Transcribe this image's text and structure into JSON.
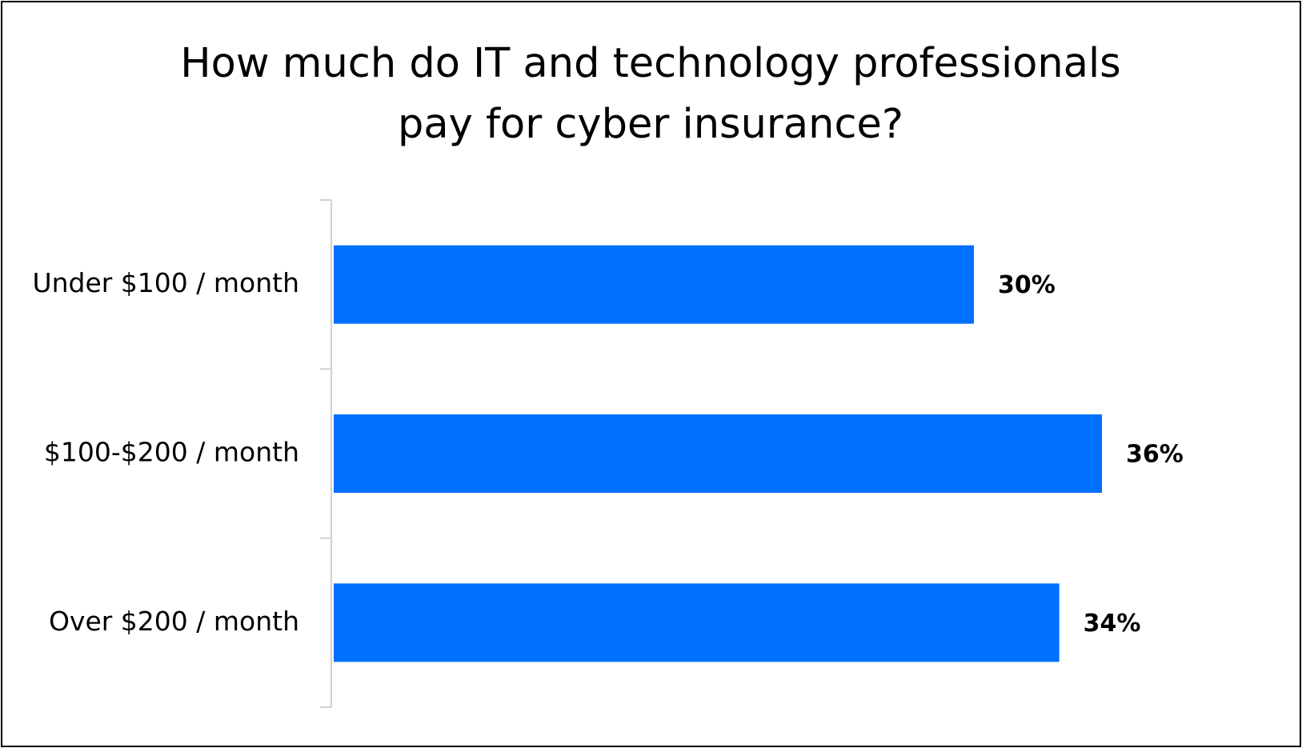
{
  "chart_data": {
    "type": "bar",
    "orientation": "horizontal",
    "title": "How much do IT and technology professionals pay for cyber insurance?",
    "title_lines": [
      "How much do IT and technology professionals",
      "pay for cyber insurance?"
    ],
    "categories": [
      "Under $100 / month",
      "$100-$200 / month",
      "Over $200 / month"
    ],
    "values": [
      30,
      36,
      34
    ],
    "value_labels": [
      "30%",
      "36%",
      "34%"
    ],
    "unit": "%",
    "xlabel": "",
    "ylabel": "",
    "grid": false,
    "legend": "none",
    "colors": {
      "bar": "#0070FF",
      "axis": "#D0D0D0",
      "frame": "#000000"
    }
  }
}
